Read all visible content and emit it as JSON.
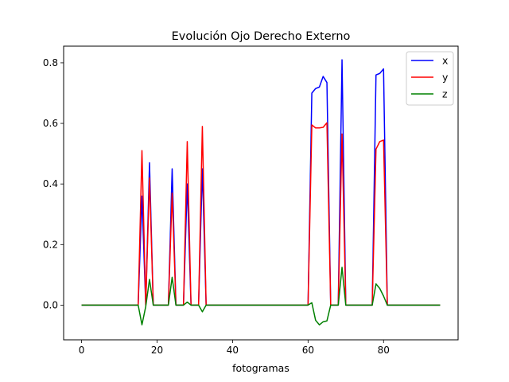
{
  "chart_data": {
    "type": "line",
    "title": "Evolución Ojo Derecho Externo",
    "xlabel": "fotogramas",
    "ylabel": "",
    "xlim": [
      -4.75,
      99.75
    ],
    "ylim": [
      -0.1145,
      0.855
    ],
    "xticks": [
      0,
      20,
      40,
      60,
      80
    ],
    "yticks": [
      0.0,
      0.2,
      0.4,
      0.6,
      0.8
    ],
    "ytick_labels": [
      "0.0",
      "0.2",
      "0.4",
      "0.6",
      "0.8"
    ],
    "grid": false,
    "legend_position": "top-right",
    "x": [
      0,
      1,
      2,
      3,
      4,
      5,
      6,
      7,
      8,
      9,
      10,
      11,
      12,
      13,
      14,
      15,
      16,
      17,
      18,
      19,
      20,
      21,
      22,
      23,
      24,
      25,
      26,
      27,
      28,
      29,
      30,
      31,
      32,
      33,
      34,
      35,
      36,
      37,
      38,
      39,
      40,
      41,
      42,
      43,
      44,
      45,
      46,
      47,
      48,
      49,
      50,
      51,
      52,
      53,
      54,
      55,
      56,
      57,
      58,
      59,
      60,
      61,
      62,
      63,
      64,
      65,
      66,
      67,
      68,
      69,
      70,
      71,
      72,
      73,
      74,
      75,
      76,
      77,
      78,
      79,
      80,
      81,
      82,
      83,
      84,
      85,
      86,
      87,
      88,
      89,
      90,
      91,
      92,
      93,
      94,
      95
    ],
    "series": [
      {
        "name": "x",
        "color": "#0000ff",
        "values": [
          0,
          0,
          0,
          0,
          0,
          0,
          0,
          0,
          0,
          0,
          0,
          0,
          0,
          0,
          0,
          0,
          0.36,
          0,
          0.47,
          0,
          0,
          0,
          0,
          0,
          0.45,
          0,
          0,
          0,
          0.4,
          0,
          0,
          0,
          0.45,
          0,
          0,
          0,
          0,
          0,
          0,
          0,
          0,
          0,
          0,
          0,
          0,
          0,
          0,
          0,
          0,
          0,
          0,
          0,
          0,
          0,
          0,
          0,
          0,
          0,
          0,
          0,
          0,
          0.7,
          0.715,
          0.72,
          0.755,
          0.735,
          0,
          0,
          0,
          0.81,
          0,
          0,
          0,
          0,
          0,
          0,
          0,
          0,
          0.76,
          0.765,
          0.78,
          0,
          0,
          0,
          0,
          0,
          0,
          0,
          0,
          0,
          0,
          0,
          0,
          0,
          0,
          0
        ]
      },
      {
        "name": "y",
        "color": "#ff0000",
        "values": [
          0,
          0,
          0,
          0,
          0,
          0,
          0,
          0,
          0,
          0,
          0,
          0,
          0,
          0,
          0,
          0,
          0.51,
          0,
          0.42,
          0,
          0,
          0,
          0,
          0,
          0.37,
          0,
          0,
          0,
          0.54,
          0,
          0,
          0,
          0.59,
          0,
          0,
          0,
          0,
          0,
          0,
          0,
          0,
          0,
          0,
          0,
          0,
          0,
          0,
          0,
          0,
          0,
          0,
          0,
          0,
          0,
          0,
          0,
          0,
          0,
          0,
          0,
          0,
          0.595,
          0.585,
          0.585,
          0.587,
          0.602,
          0,
          0,
          0,
          0.565,
          0,
          0,
          0,
          0,
          0,
          0,
          0,
          0,
          0.515,
          0.54,
          0.545,
          0,
          0,
          0,
          0,
          0,
          0,
          0,
          0,
          0,
          0,
          0,
          0,
          0,
          0,
          0
        ]
      },
      {
        "name": "z",
        "color": "#008000",
        "values": [
          0,
          0,
          0,
          0,
          0,
          0,
          0,
          0,
          0,
          0,
          0,
          0,
          0,
          0,
          0,
          0,
          -0.065,
          -0.005,
          0.085,
          0,
          0,
          0,
          0,
          0,
          0.092,
          0,
          0,
          0,
          0.01,
          0,
          0,
          0,
          -0.022,
          0,
          0,
          0,
          0,
          0,
          0,
          0,
          0,
          0,
          0,
          0,
          0,
          0,
          0,
          0,
          0,
          0,
          0,
          0,
          0,
          0,
          0,
          0,
          0,
          0,
          0,
          0,
          0,
          0.008,
          -0.05,
          -0.065,
          -0.055,
          -0.052,
          0,
          0,
          0,
          0.125,
          0,
          0,
          0,
          0,
          0,
          0,
          0,
          0,
          0.07,
          0.055,
          0.03,
          0,
          0,
          0,
          0,
          0,
          0,
          0,
          0,
          0,
          0,
          0,
          0,
          0,
          0,
          0
        ]
      }
    ]
  }
}
